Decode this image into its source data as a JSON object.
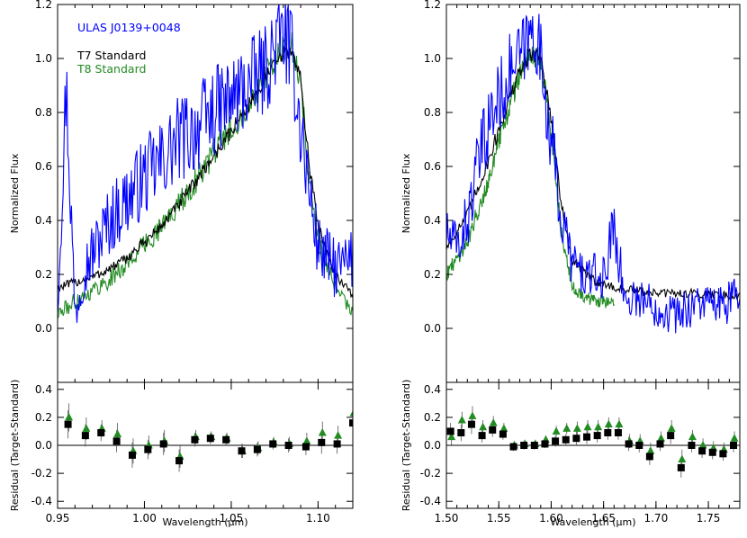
{
  "chart_data": [
    {
      "type": "line",
      "panel": "left-spectrum",
      "xlim": [
        0.95,
        1.12
      ],
      "ylim": [
        -0.2,
        1.2
      ],
      "ylabel": "Normalized Flux",
      "xlabel": "",
      "yticks": [
        0.0,
        0.2,
        0.4,
        0.6,
        0.8,
        1.0,
        1.2
      ],
      "yticklabels": [
        "0.0",
        "0.2",
        "0.4",
        "0.6",
        "0.8",
        "1.0",
        "1.2"
      ],
      "legend": [
        "ULAS J0139+0048",
        "T7 Standard",
        "T8 Standard"
      ],
      "series": [
        {
          "name": "ULAS J0139+0048",
          "color": "#0000ff",
          "noise": 0.12,
          "x": [
            0.95,
            0.955,
            0.96,
            0.965,
            0.97,
            0.98,
            0.99,
            1.0,
            1.01,
            1.02,
            1.03,
            1.04,
            1.05,
            1.06,
            1.07,
            1.075,
            1.08,
            1.085,
            1.09,
            1.095,
            1.1,
            1.11,
            1.12
          ],
          "y": [
            0.1,
            0.9,
            0.05,
            0.22,
            0.28,
            0.4,
            0.48,
            0.56,
            0.62,
            0.7,
            0.74,
            0.8,
            0.85,
            0.9,
            0.96,
            1.04,
            1.1,
            1.0,
            0.75,
            0.5,
            0.3,
            0.22,
            0.25
          ]
        },
        {
          "name": "T7 Standard",
          "color": "#000000",
          "noise": 0.02,
          "x": [
            0.95,
            0.96,
            0.97,
            0.98,
            0.99,
            1.0,
            1.01,
            1.02,
            1.03,
            1.04,
            1.05,
            1.06,
            1.07,
            1.08,
            1.085,
            1.09,
            1.095,
            1.1,
            1.11,
            1.12
          ],
          "y": [
            0.15,
            0.17,
            0.19,
            0.22,
            0.26,
            0.32,
            0.38,
            0.46,
            0.55,
            0.64,
            0.73,
            0.83,
            0.93,
            1.02,
            1.03,
            0.92,
            0.6,
            0.38,
            0.2,
            0.12
          ]
        },
        {
          "name": "T8 Standard",
          "color": "#228b22",
          "noise": 0.04,
          "x": [
            0.95,
            0.96,
            0.97,
            0.98,
            0.99,
            1.0,
            1.01,
            1.02,
            1.03,
            1.04,
            1.05,
            1.06,
            1.07,
            1.08,
            1.085,
            1.09,
            1.095,
            1.1,
            1.11,
            1.12
          ],
          "y": [
            0.05,
            0.1,
            0.14,
            0.18,
            0.24,
            0.31,
            0.38,
            0.46,
            0.55,
            0.65,
            0.74,
            0.84,
            0.94,
            1.03,
            1.05,
            0.9,
            0.55,
            0.32,
            0.15,
            0.05
          ]
        }
      ]
    },
    {
      "type": "line",
      "panel": "right-spectrum",
      "xlim": [
        1.5,
        1.78
      ],
      "ylim": [
        -0.2,
        1.2
      ],
      "ylabel": "Normalized Flux",
      "xlabel": "",
      "yticks": [
        0.0,
        0.2,
        0.4,
        0.6,
        0.8,
        1.0,
        1.2
      ],
      "yticklabels": [
        "0.0",
        "0.2",
        "0.4",
        "0.6",
        "0.8",
        "1.0",
        "1.2"
      ],
      "series": [
        {
          "name": "ULAS J0139+0048",
          "color": "#0000ff",
          "noise": 0.1,
          "x": [
            1.5,
            1.51,
            1.52,
            1.53,
            1.54,
            1.55,
            1.56,
            1.57,
            1.58,
            1.585,
            1.59,
            1.6,
            1.61,
            1.62,
            1.63,
            1.65,
            1.66,
            1.67,
            1.68,
            1.7,
            1.72,
            1.74,
            1.76,
            1.78
          ],
          "y": [
            0.35,
            0.3,
            0.4,
            0.6,
            0.75,
            0.85,
            0.95,
            1.0,
            1.08,
            1.1,
            1.0,
            0.7,
            0.4,
            0.25,
            0.2,
            0.18,
            0.4,
            0.1,
            0.12,
            0.08,
            0.05,
            0.1,
            0.08,
            0.12
          ]
        },
        {
          "name": "T7 Standard",
          "color": "#000000",
          "noise": 0.02,
          "x": [
            1.5,
            1.52,
            1.54,
            1.56,
            1.57,
            1.58,
            1.59,
            1.6,
            1.61,
            1.62,
            1.64,
            1.66,
            1.7,
            1.74,
            1.78
          ],
          "y": [
            0.3,
            0.42,
            0.62,
            0.85,
            0.95,
            1.02,
            1.0,
            0.78,
            0.45,
            0.25,
            0.18,
            0.15,
            0.13,
            0.13,
            0.12
          ]
        },
        {
          "name": "T8 Standard",
          "color": "#228b22",
          "noise": 0.03,
          "x": [
            1.5,
            1.52,
            1.54,
            1.56,
            1.57,
            1.58,
            1.59,
            1.6,
            1.61,
            1.62,
            1.64,
            1.66
          ],
          "y": [
            0.2,
            0.32,
            0.55,
            0.82,
            0.94,
            1.02,
            1.0,
            0.72,
            0.35,
            0.15,
            0.1,
            0.1
          ]
        }
      ]
    },
    {
      "type": "scatter",
      "panel": "left-residual",
      "xlim": [
        0.95,
        1.12
      ],
      "ylim": [
        -0.45,
        0.45
      ],
      "xlabel": "Wavelength (μm)",
      "ylabel": "Residual (Target-Standard)",
      "xticks": [
        0.95,
        1.0,
        1.05,
        1.1
      ],
      "xticklabels": [
        "0.95",
        "1.00",
        "1.05",
        "1.10"
      ],
      "yticks": [
        -0.4,
        -0.2,
        0.0,
        0.2,
        0.4
      ],
      "yticklabels": [
        "-0.4",
        "-0.2",
        "0.0",
        "0.2",
        "0.4"
      ],
      "series": [
        {
          "name": "T7 Standard",
          "marker": "square",
          "color": "#000000",
          "x": [
            0.956,
            0.966,
            0.975,
            0.984,
            0.993,
            1.002,
            1.011,
            1.02,
            1.029,
            1.038,
            1.047,
            1.056,
            1.065,
            1.074,
            1.083,
            1.093,
            1.102,
            1.111,
            1.12
          ],
          "y": [
            0.15,
            0.07,
            0.09,
            0.03,
            -0.07,
            -0.03,
            0.01,
            -0.11,
            0.04,
            0.05,
            0.04,
            -0.04,
            -0.03,
            0.01,
            0.0,
            -0.01,
            0.02,
            0.01,
            0.16
          ],
          "err": [
            0.1,
            0.08,
            0.06,
            0.08,
            0.09,
            0.07,
            0.08,
            0.08,
            0.05,
            0.04,
            0.04,
            0.05,
            0.05,
            0.04,
            0.05,
            0.06,
            0.08,
            0.07,
            0.1
          ]
        },
        {
          "name": "T8 Standard",
          "marker": "triangle",
          "color": "#228b22",
          "x": [
            0.956,
            0.966,
            0.975,
            0.984,
            0.993,
            1.002,
            1.011,
            1.02,
            1.029,
            1.038,
            1.047,
            1.056,
            1.065,
            1.074,
            1.083,
            1.093,
            1.102,
            1.111,
            1.12
          ],
          "y": [
            0.2,
            0.12,
            0.12,
            0.08,
            -0.04,
            0.0,
            0.03,
            -0.08,
            0.06,
            0.06,
            0.05,
            -0.04,
            -0.02,
            0.02,
            0.01,
            0.03,
            0.09,
            0.07,
            0.23
          ],
          "err": [
            0.1,
            0.08,
            0.06,
            0.08,
            0.09,
            0.07,
            0.08,
            0.08,
            0.05,
            0.04,
            0.04,
            0.05,
            0.05,
            0.04,
            0.05,
            0.06,
            0.08,
            0.07,
            0.1
          ]
        }
      ]
    },
    {
      "type": "scatter",
      "panel": "right-residual",
      "xlim": [
        1.5,
        1.78
      ],
      "ylim": [
        -0.45,
        0.45
      ],
      "xlabel": "Wavelength (μm)",
      "ylabel": "Residual (Target-Standard)",
      "xticks": [
        1.5,
        1.55,
        1.6,
        1.65,
        1.7,
        1.75
      ],
      "xticklabels": [
        "1.50",
        "1.55",
        "1.60",
        "1.65",
        "1.70",
        "1.75"
      ],
      "yticks": [
        -0.4,
        -0.2,
        0.0,
        0.2,
        0.4
      ],
      "yticklabels": [
        "-0.4",
        "-0.2",
        "0.0",
        "0.2",
        "0.4"
      ],
      "series": [
        {
          "name": "T7 Standard",
          "marker": "square",
          "color": "#000000",
          "x": [
            1.504,
            1.514,
            1.524,
            1.534,
            1.544,
            1.554,
            1.564,
            1.574,
            1.584,
            1.594,
            1.604,
            1.614,
            1.624,
            1.634,
            1.644,
            1.654,
            1.664,
            1.674,
            1.684,
            1.694,
            1.704,
            1.714,
            1.724,
            1.734,
            1.744,
            1.754,
            1.764,
            1.774
          ],
          "y": [
            0.1,
            0.09,
            0.15,
            0.07,
            0.11,
            0.08,
            -0.01,
            0.0,
            0.0,
            0.01,
            0.03,
            0.04,
            0.05,
            0.06,
            0.07,
            0.09,
            0.09,
            0.01,
            0.0,
            -0.08,
            0.01,
            0.07,
            -0.16,
            0.0,
            -0.04,
            -0.05,
            -0.06,
            0.0
          ],
          "err": [
            0.06,
            0.06,
            0.07,
            0.05,
            0.05,
            0.04,
            0.03,
            0.03,
            0.03,
            0.03,
            0.04,
            0.04,
            0.05,
            0.05,
            0.05,
            0.05,
            0.05,
            0.05,
            0.05,
            0.06,
            0.05,
            0.06,
            0.07,
            0.05,
            0.05,
            0.05,
            0.05,
            0.05
          ]
        },
        {
          "name": "T8 Standard",
          "marker": "triangle",
          "color": "#228b22",
          "x": [
            1.504,
            1.514,
            1.524,
            1.534,
            1.544,
            1.554,
            1.564,
            1.574,
            1.584,
            1.594,
            1.604,
            1.614,
            1.624,
            1.634,
            1.644,
            1.654,
            1.664,
            1.674,
            1.684,
            1.694,
            1.704,
            1.714,
            1.724,
            1.734,
            1.744,
            1.754,
            1.764,
            1.774
          ],
          "y": [
            0.06,
            0.18,
            0.21,
            0.13,
            0.16,
            0.12,
            0.0,
            0.01,
            0.01,
            0.04,
            0.1,
            0.12,
            0.12,
            0.13,
            0.13,
            0.15,
            0.15,
            0.03,
            0.03,
            -0.04,
            0.05,
            0.12,
            -0.1,
            0.06,
            0.0,
            -0.02,
            -0.03,
            0.05
          ],
          "err": [
            0.06,
            0.06,
            0.07,
            0.05,
            0.05,
            0.04,
            0.03,
            0.03,
            0.03,
            0.03,
            0.04,
            0.04,
            0.05,
            0.05,
            0.05,
            0.05,
            0.05,
            0.05,
            0.05,
            0.06,
            0.05,
            0.06,
            0.07,
            0.05,
            0.05,
            0.05,
            0.05,
            0.05
          ]
        }
      ]
    }
  ]
}
